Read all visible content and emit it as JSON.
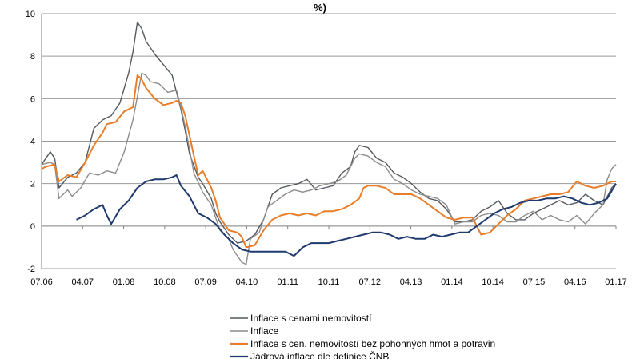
{
  "chart_data": {
    "type": "line",
    "title": "%)",
    "xlabel": "",
    "ylabel": "",
    "ylim": [
      -2,
      10
    ],
    "yticks": [
      -2,
      0,
      2,
      4,
      6,
      8,
      10
    ],
    "grid": true,
    "legend_position": "bottom-center",
    "x_start": "07.06",
    "x_end": "01.17",
    "x_tick_labels": [
      "07.06",
      "04.07",
      "01.08",
      "10.08",
      "07.09",
      "04.10",
      "01.11",
      "10.11",
      "07.12",
      "04.13",
      "01.14",
      "10.14",
      "07.15",
      "04.16",
      "01.17"
    ],
    "series": [
      {
        "name": "Inflace s cenami nemovitostí",
        "color": "#555a60",
        "points": [
          [
            0,
            2.9
          ],
          [
            2,
            3.5
          ],
          [
            3,
            3.2
          ],
          [
            4,
            1.8
          ],
          [
            6,
            2.3
          ],
          [
            8,
            2.5
          ],
          [
            10,
            3.0
          ],
          [
            12,
            4.6
          ],
          [
            14,
            5.0
          ],
          [
            16,
            5.2
          ],
          [
            18,
            5.8
          ],
          [
            20,
            7.2
          ],
          [
            21,
            8.2
          ],
          [
            22,
            9.6
          ],
          [
            23,
            9.3
          ],
          [
            24,
            8.7
          ],
          [
            26,
            8.1
          ],
          [
            28,
            7.6
          ],
          [
            30,
            7.1
          ],
          [
            32,
            5.5
          ],
          [
            33,
            4.5
          ],
          [
            34,
            3.4
          ],
          [
            36,
            2.3
          ],
          [
            37,
            2.0
          ],
          [
            39,
            1.3
          ],
          [
            40,
            0.6
          ],
          [
            41,
            0.2
          ],
          [
            43,
            -0.4
          ],
          [
            45,
            -0.8
          ],
          [
            47,
            -0.7
          ],
          [
            49,
            -0.4
          ],
          [
            51,
            0.3
          ],
          [
            53,
            1.5
          ],
          [
            55,
            1.8
          ],
          [
            57,
            1.9
          ],
          [
            59,
            2.0
          ],
          [
            61,
            2.2
          ],
          [
            63,
            1.7
          ],
          [
            65,
            1.8
          ],
          [
            67,
            1.9
          ],
          [
            69,
            2.5
          ],
          [
            71,
            2.8
          ],
          [
            72,
            3.5
          ],
          [
            73,
            3.8
          ],
          [
            75,
            3.7
          ],
          [
            77,
            3.2
          ],
          [
            79,
            3.0
          ],
          [
            81,
            2.5
          ],
          [
            83,
            2.3
          ],
          [
            85,
            2.0
          ],
          [
            87,
            1.6
          ],
          [
            89,
            1.3
          ],
          [
            91,
            1.2
          ],
          [
            93,
            0.8
          ],
          [
            95,
            0.2
          ],
          [
            97,
            0.2
          ],
          [
            99,
            0.3
          ],
          [
            101,
            0.7
          ],
          [
            103,
            0.9
          ],
          [
            105,
            1.2
          ],
          [
            107,
            0.6
          ],
          [
            109,
            0.3
          ],
          [
            111,
            0.3
          ],
          [
            113,
            0.6
          ],
          [
            115,
            0.8
          ],
          [
            117,
            1.0
          ],
          [
            119,
            1.2
          ],
          [
            121,
            1.0
          ],
          [
            123,
            1.1
          ],
          [
            125,
            1.5
          ],
          [
            127,
            1.2
          ],
          [
            129,
            1.0
          ],
          [
            131,
            1.8
          ],
          [
            132,
            2.0
          ]
        ]
      },
      {
        "name": "Inflace",
        "color": "#8c8c8c",
        "points": [
          [
            0,
            2.9
          ],
          [
            2,
            3.0
          ],
          [
            3,
            2.9
          ],
          [
            4,
            1.3
          ],
          [
            6,
            1.7
          ],
          [
            7,
            1.4
          ],
          [
            9,
            1.8
          ],
          [
            11,
            2.5
          ],
          [
            13,
            2.4
          ],
          [
            15,
            2.6
          ],
          [
            17,
            2.5
          ],
          [
            19,
            3.5
          ],
          [
            21,
            5.0
          ],
          [
            22,
            6.1
          ],
          [
            23,
            7.2
          ],
          [
            24,
            7.1
          ],
          [
            25,
            6.8
          ],
          [
            27,
            6.7
          ],
          [
            29,
            6.3
          ],
          [
            31,
            6.4
          ],
          [
            32,
            5.6
          ],
          [
            33,
            4.7
          ],
          [
            35,
            2.5
          ],
          [
            37,
            1.6
          ],
          [
            39,
            1.0
          ],
          [
            41,
            -0.2
          ],
          [
            43,
            -0.6
          ],
          [
            44,
            -1.1
          ],
          [
            46,
            -1.7
          ],
          [
            47,
            -1.8
          ],
          [
            48,
            -0.6
          ],
          [
            50,
            -0.3
          ],
          [
            52,
            0.9
          ],
          [
            54,
            1.2
          ],
          [
            56,
            1.5
          ],
          [
            58,
            1.7
          ],
          [
            60,
            1.6
          ],
          [
            62,
            1.7
          ],
          [
            64,
            1.9
          ],
          [
            66,
            2.0
          ],
          [
            68,
            2.1
          ],
          [
            70,
            2.4
          ],
          [
            72,
            3.2
          ],
          [
            73,
            3.4
          ],
          [
            75,
            3.3
          ],
          [
            77,
            3.0
          ],
          [
            79,
            2.8
          ],
          [
            81,
            2.2
          ],
          [
            83,
            2.0
          ],
          [
            85,
            1.7
          ],
          [
            87,
            1.5
          ],
          [
            89,
            1.4
          ],
          [
            91,
            1.3
          ],
          [
            93,
            1.0
          ],
          [
            95,
            0.1
          ],
          [
            97,
            0.2
          ],
          [
            99,
            0.2
          ],
          [
            101,
            0.5
          ],
          [
            103,
            0.6
          ],
          [
            105,
            0.5
          ],
          [
            107,
            0.2
          ],
          [
            109,
            0.2
          ],
          [
            111,
            0.5
          ],
          [
            113,
            0.7
          ],
          [
            115,
            0.3
          ],
          [
            117,
            0.5
          ],
          [
            119,
            0.3
          ],
          [
            121,
            0.2
          ],
          [
            123,
            0.5
          ],
          [
            125,
            0.1
          ],
          [
            127,
            0.6
          ],
          [
            129,
            1.0
          ],
          [
            130,
            2.2
          ],
          [
            131,
            2.7
          ],
          [
            132,
            2.9
          ]
        ]
      },
      {
        "name": "Inflace s cen. nemovitostí bez pohonných hmot a potravin",
        "color": "#e87e2a",
        "points": [
          [
            0,
            2.7
          ],
          [
            1,
            2.8
          ],
          [
            3,
            2.9
          ],
          [
            4,
            2.1
          ],
          [
            6,
            2.4
          ],
          [
            8,
            2.3
          ],
          [
            10,
            3.0
          ],
          [
            12,
            3.8
          ],
          [
            14,
            4.4
          ],
          [
            15,
            4.8
          ],
          [
            17,
            4.9
          ],
          [
            19,
            5.4
          ],
          [
            20,
            5.5
          ],
          [
            21,
            5.6
          ],
          [
            22,
            7.1
          ],
          [
            23,
            6.9
          ],
          [
            24,
            6.5
          ],
          [
            26,
            6.0
          ],
          [
            28,
            5.7
          ],
          [
            30,
            5.8
          ],
          [
            31,
            5.9
          ],
          [
            32,
            5.8
          ],
          [
            33,
            5.2
          ],
          [
            35,
            3.3
          ],
          [
            36,
            2.4
          ],
          [
            37,
            2.6
          ],
          [
            39,
            1.8
          ],
          [
            40,
            1.2
          ],
          [
            41,
            0.4
          ],
          [
            43,
            -0.2
          ],
          [
            45,
            -0.3
          ],
          [
            46,
            -0.5
          ],
          [
            47,
            -1.0
          ],
          [
            49,
            -0.9
          ],
          [
            51,
            -0.2
          ],
          [
            53,
            0.3
          ],
          [
            55,
            0.5
          ],
          [
            57,
            0.6
          ],
          [
            59,
            0.5
          ],
          [
            61,
            0.6
          ],
          [
            63,
            0.5
          ],
          [
            65,
            0.7
          ],
          [
            67,
            0.7
          ],
          [
            69,
            0.8
          ],
          [
            71,
            1.0
          ],
          [
            73,
            1.3
          ],
          [
            74,
            1.8
          ],
          [
            75,
            1.9
          ],
          [
            77,
            1.9
          ],
          [
            79,
            1.8
          ],
          [
            81,
            1.5
          ],
          [
            83,
            1.5
          ],
          [
            85,
            1.5
          ],
          [
            87,
            1.3
          ],
          [
            89,
            1.0
          ],
          [
            91,
            0.7
          ],
          [
            93,
            0.4
          ],
          [
            95,
            0.3
          ],
          [
            97,
            0.4
          ],
          [
            99,
            0.4
          ],
          [
            101,
            -0.4
          ],
          [
            103,
            -0.3
          ],
          [
            105,
            0.1
          ],
          [
            107,
            0.5
          ],
          [
            109,
            0.8
          ],
          [
            111,
            1.2
          ],
          [
            113,
            1.3
          ],
          [
            115,
            1.4
          ],
          [
            117,
            1.5
          ],
          [
            119,
            1.5
          ],
          [
            121,
            1.6
          ],
          [
            123,
            2.1
          ],
          [
            125,
            1.9
          ],
          [
            127,
            1.8
          ],
          [
            129,
            1.9
          ],
          [
            131,
            2.1
          ],
          [
            132,
            2.1
          ]
        ]
      },
      {
        "name": "Jádrová inflace dle definice ČNB",
        "color": "#1f3a6e",
        "points": [
          [
            8,
            0.3
          ],
          [
            10,
            0.5
          ],
          [
            12,
            0.8
          ],
          [
            14,
            1.0
          ],
          [
            15,
            0.5
          ],
          [
            16,
            0.1
          ],
          [
            18,
            0.8
          ],
          [
            20,
            1.2
          ],
          [
            22,
            1.8
          ],
          [
            24,
            2.1
          ],
          [
            26,
            2.2
          ],
          [
            28,
            2.2
          ],
          [
            30,
            2.3
          ],
          [
            31,
            2.4
          ],
          [
            32,
            1.9
          ],
          [
            34,
            1.4
          ],
          [
            36,
            0.6
          ],
          [
            38,
            0.4
          ],
          [
            40,
            0.1
          ],
          [
            42,
            -0.4
          ],
          [
            44,
            -0.8
          ],
          [
            46,
            -1.1
          ],
          [
            48,
            -1.2
          ],
          [
            52,
            -1.2
          ],
          [
            56,
            -1.2
          ],
          [
            58,
            -1.4
          ],
          [
            60,
            -1.0
          ],
          [
            62,
            -0.8
          ],
          [
            66,
            -0.8
          ],
          [
            68,
            -0.7
          ],
          [
            70,
            -0.6
          ],
          [
            72,
            -0.5
          ],
          [
            74,
            -0.4
          ],
          [
            76,
            -0.3
          ],
          [
            78,
            -0.3
          ],
          [
            80,
            -0.4
          ],
          [
            82,
            -0.6
          ],
          [
            84,
            -0.5
          ],
          [
            86,
            -0.6
          ],
          [
            88,
            -0.6
          ],
          [
            90,
            -0.4
          ],
          [
            92,
            -0.5
          ],
          [
            94,
            -0.4
          ],
          [
            96,
            -0.3
          ],
          [
            98,
            -0.3
          ],
          [
            100,
            0.0
          ],
          [
            102,
            0.3
          ],
          [
            104,
            0.6
          ],
          [
            106,
            0.8
          ],
          [
            108,
            0.9
          ],
          [
            110,
            1.1
          ],
          [
            112,
            1.2
          ],
          [
            114,
            1.2
          ],
          [
            116,
            1.3
          ],
          [
            118,
            1.3
          ],
          [
            120,
            1.4
          ],
          [
            122,
            1.3
          ],
          [
            124,
            1.1
          ],
          [
            126,
            1.0
          ],
          [
            128,
            1.1
          ],
          [
            130,
            1.3
          ],
          [
            132,
            2.0
          ]
        ]
      }
    ]
  }
}
